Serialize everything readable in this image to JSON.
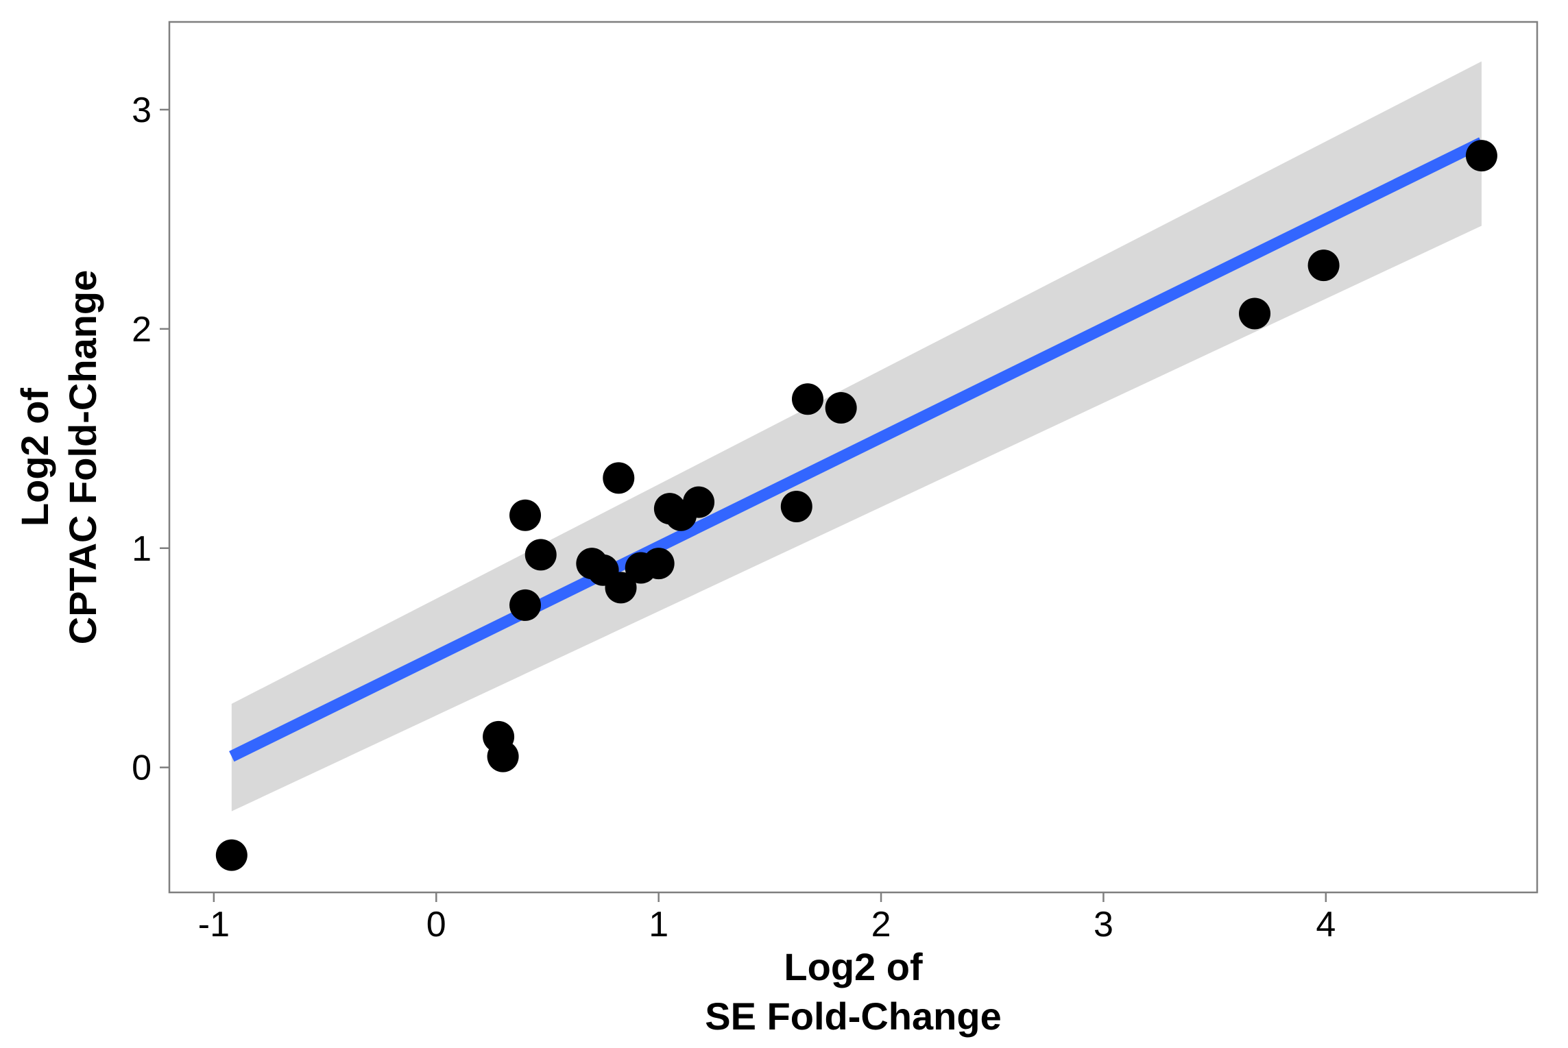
{
  "chart_data": {
    "type": "scatter",
    "title": "",
    "xlabel": [
      "Log2 of",
      "SE Fold-Change"
    ],
    "ylabel": [
      "Log2 of",
      "CPTAC Fold-Change"
    ],
    "xlim": [
      -1.2,
      4.95
    ],
    "ylim": [
      -0.57,
      3.4
    ],
    "xticks": [
      -1,
      0,
      1,
      2,
      3,
      4
    ],
    "xtick_labels": [
      "-1",
      "0",
      "1",
      "2",
      "3",
      "4"
    ],
    "yticks": [
      0,
      1,
      2,
      3
    ],
    "ytick_labels": [
      "0",
      "1",
      "2",
      "3"
    ],
    "grid": false,
    "series": [
      {
        "points": [
          {
            "x": -0.92,
            "y": -0.4
          },
          {
            "x": 0.28,
            "y": 0.14
          },
          {
            "x": 0.3,
            "y": 0.05
          },
          {
            "x": 0.4,
            "y": 0.74
          },
          {
            "x": 0.4,
            "y": 1.15
          },
          {
            "x": 0.47,
            "y": 0.97
          },
          {
            "x": 0.7,
            "y": 0.93
          },
          {
            "x": 0.75,
            "y": 0.9
          },
          {
            "x": 0.82,
            "y": 1.32
          },
          {
            "x": 0.83,
            "y": 0.82
          },
          {
            "x": 0.92,
            "y": 0.91
          },
          {
            "x": 1.0,
            "y": 0.93
          },
          {
            "x": 1.05,
            "y": 1.18
          },
          {
            "x": 1.1,
            "y": 1.15
          },
          {
            "x": 1.18,
            "y": 1.21
          },
          {
            "x": 1.62,
            "y": 1.19
          },
          {
            "x": 1.67,
            "y": 1.68
          },
          {
            "x": 1.82,
            "y": 1.64
          },
          {
            "x": 3.68,
            "y": 2.07
          },
          {
            "x": 3.99,
            "y": 2.29
          },
          {
            "x": 4.7,
            "y": 2.79
          }
        ],
        "color": "#000000"
      }
    ],
    "fit_line": {
      "x": [
        -0.92,
        4.7
      ],
      "y": [
        0.05,
        2.85
      ],
      "color": "#3366FF"
    },
    "confidence_band": {
      "x": [
        -0.92,
        4.7
      ],
      "upper": [
        0.29,
        3.22
      ],
      "lower": [
        -0.2,
        2.47
      ],
      "color": "#D9D9D9"
    }
  }
}
